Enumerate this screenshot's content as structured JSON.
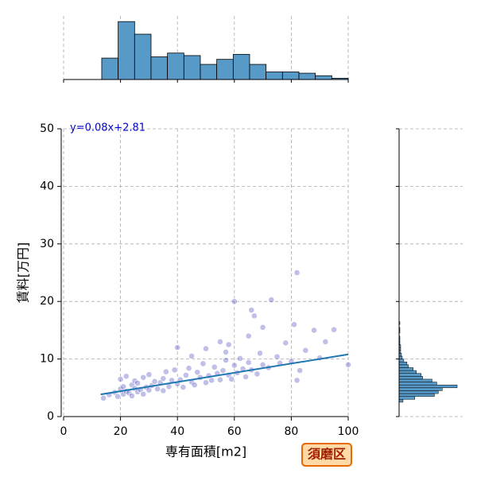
{
  "chart_data": [
    {
      "type": "histogram",
      "orientation": "vertical",
      "color": "#5799c7",
      "bins": [
        13.4,
        19.17,
        24.95,
        30.72,
        36.49,
        42.27,
        48.04,
        53.81,
        59.59,
        65.36,
        71.13,
        76.91,
        82.68,
        88.45,
        94.23,
        100
      ],
      "counts": [
        17,
        46,
        36,
        18,
        21,
        19,
        12,
        16,
        20,
        12,
        6,
        6,
        5,
        3,
        1
      ],
      "xlim": [
        0,
        100
      ],
      "xticks": [
        0,
        20,
        40,
        60,
        80,
        100
      ],
      "ylim": [
        0,
        48
      ],
      "grid": true
    },
    {
      "type": "scatter",
      "color": "#2b2bb0",
      "grid": true,
      "xlabel": "専有面積[m2]",
      "ylabel": "賃料[万円]",
      "annotation": "y=0.08x+2.81",
      "badge": "須磨区",
      "xlim": [
        0,
        100
      ],
      "xticks": [
        0,
        20,
        40,
        60,
        80,
        100
      ],
      "ylim": [
        0,
        50
      ],
      "yticks": [
        0,
        10,
        20,
        30,
        40,
        50
      ],
      "x": [
        14,
        16,
        18,
        19,
        20,
        20,
        21,
        21,
        22,
        22,
        23,
        24,
        24,
        25,
        25,
        26,
        26,
        27,
        28,
        28,
        29,
        30,
        30,
        31,
        32,
        33,
        34,
        35,
        35,
        36,
        37,
        38,
        39,
        40,
        40,
        41,
        42,
        43,
        44,
        45,
        45,
        46,
        47,
        48,
        49,
        50,
        50,
        51,
        52,
        53,
        54,
        55,
        55,
        56,
        57,
        58,
        58,
        59,
        60,
        60,
        61,
        62,
        63,
        64,
        65,
        65,
        66,
        67,
        68,
        69,
        70,
        70,
        72,
        73,
        75,
        76,
        78,
        80,
        81,
        82,
        83,
        85,
        88,
        90,
        92,
        95,
        100,
        57,
        66,
        82
      ],
      "values": [
        3.2,
        3.8,
        4.2,
        3.5,
        4.8,
        6.5,
        3.9,
        5.2,
        4.4,
        7.0,
        4.1,
        5.5,
        3.6,
        4.9,
        6.2,
        4.3,
        5.8,
        4.7,
        6.8,
        3.9,
        5.1,
        4.6,
        7.3,
        5.4,
        6.1,
        4.8,
        5.9,
        6.6,
        4.5,
        7.8,
        5.2,
        6.3,
        8.1,
        5.7,
        12.0,
        6.4,
        5.1,
        7.2,
        8.4,
        6.0,
        10.5,
        5.5,
        7.7,
        6.8,
        9.2,
        5.9,
        11.8,
        7.1,
        6.3,
        8.6,
        7.5,
        6.4,
        13.0,
        8.0,
        9.8,
        7.2,
        12.5,
        6.5,
        8.9,
        20.0,
        7.6,
        10.1,
        8.3,
        6.9,
        14.0,
        9.4,
        8.1,
        17.5,
        7.4,
        11.0,
        9.0,
        15.5,
        8.5,
        20.3,
        10.4,
        9.3,
        12.8,
        9.6,
        16.0,
        25.0,
        8.0,
        11.5,
        15.0,
        10.2,
        13.0,
        15.1,
        9.0,
        11.2,
        18.5,
        6.3
      ],
      "regression": {
        "color": "#1f77b4",
        "x": [
          13,
          100
        ],
        "values": [
          3.85,
          10.81
        ]
      }
    },
    {
      "type": "histogram",
      "orientation": "horizontal",
      "color": "#5799c7",
      "bins": [
        2.5,
        3,
        3.5,
        4,
        4.5,
        5,
        5.5,
        6,
        6.5,
        7,
        7.5,
        8,
        8.5,
        9,
        9.5,
        10,
        10.5,
        11,
        11.5,
        12,
        12.5,
        13,
        13.5,
        14,
        14.5,
        15,
        15.5,
        16,
        16.5
      ],
      "counts": [
        5,
        20,
        45,
        50,
        55,
        74,
        48,
        42,
        30,
        28,
        22,
        18,
        12,
        10,
        6,
        4,
        3,
        2,
        2,
        2,
        1,
        1,
        1,
        0,
        1,
        1,
        0,
        1
      ],
      "xlim": [
        0,
        75
      ],
      "ylim": [
        0,
        50
      ],
      "yticks": [
        0,
        10,
        20,
        30,
        40,
        50
      ],
      "grid": true
    }
  ]
}
